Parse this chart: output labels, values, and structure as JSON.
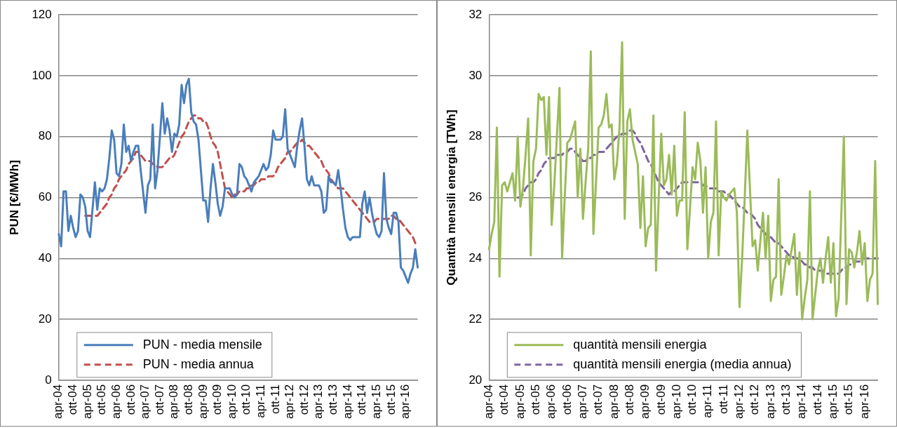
{
  "chart_data": [
    {
      "type": "line",
      "ylabel": "PUN [€/MWh]",
      "categories": [
        "apr-04",
        null,
        null,
        null,
        null,
        null,
        "ott-04",
        null,
        null,
        null,
        null,
        null,
        "apr-05",
        null,
        null,
        null,
        null,
        null,
        "ott-05",
        null,
        null,
        null,
        null,
        null,
        "apr-06",
        null,
        null,
        null,
        null,
        null,
        "ott-06",
        null,
        null,
        null,
        null,
        null,
        "apr-07",
        null,
        null,
        null,
        null,
        null,
        "ott-07",
        null,
        null,
        null,
        null,
        null,
        "apr-08",
        null,
        null,
        null,
        null,
        null,
        "ott-08",
        null,
        null,
        null,
        null,
        null,
        "apr-09",
        null,
        null,
        null,
        null,
        null,
        "ott-09",
        null,
        null,
        null,
        null,
        null,
        "apr-10",
        null,
        null,
        null,
        null,
        null,
        "ott-10",
        null,
        null,
        null,
        null,
        null,
        "apr-11",
        null,
        null,
        null,
        null,
        null,
        "ott-11",
        null,
        null,
        null,
        null,
        null,
        "apr-12",
        null,
        null,
        null,
        null,
        null,
        "ott-12",
        null,
        null,
        null,
        null,
        null,
        "apr-13",
        null,
        null,
        null,
        null,
        null,
        "ott-13",
        null,
        null,
        null,
        null,
        null,
        "apr-14",
        null,
        null,
        null,
        null,
        null,
        "ott-14",
        null,
        null,
        null,
        null,
        null,
        "apr-15",
        null,
        null,
        null,
        null,
        null,
        "ott-15",
        null,
        null,
        null,
        null,
        null,
        "apr-16",
        null,
        null,
        null,
        null,
        null
      ],
      "series": [
        {
          "name": "PUN - media mensile",
          "color": "#4a7ebb",
          "line_style": "solid",
          "values": [
            48,
            44,
            62,
            62,
            49,
            54,
            50,
            47,
            49,
            61,
            60,
            57,
            49,
            47,
            56,
            65,
            56,
            63,
            62,
            63,
            66,
            73,
            82,
            79,
            68,
            67,
            71,
            84,
            75,
            77,
            72,
            75,
            77,
            77,
            69,
            62,
            55,
            64,
            66,
            84,
            63,
            69,
            80,
            91,
            81,
            86,
            82,
            75,
            81,
            80,
            84,
            97,
            91,
            97,
            99,
            88,
            85,
            84,
            79,
            69,
            59,
            59,
            52,
            63,
            71,
            65,
            58,
            54,
            57,
            63,
            63,
            63,
            61,
            60,
            61,
            71,
            70,
            67,
            66,
            64,
            62,
            65,
            66,
            67,
            69,
            71,
            69,
            70,
            74,
            82,
            79,
            79,
            79,
            80,
            89,
            76,
            74,
            72,
            70,
            77,
            82,
            86,
            77,
            66,
            64,
            67,
            64,
            64,
            64,
            62,
            55,
            56,
            67,
            65,
            65,
            64,
            69,
            63,
            56,
            50,
            47,
            46,
            47,
            47,
            47,
            47,
            58,
            62,
            55,
            60,
            55,
            51,
            48,
            47,
            49,
            68,
            53,
            50,
            48,
            55,
            55,
            52,
            37,
            36,
            34,
            32,
            35,
            37,
            43,
            37
          ]
        },
        {
          "name": "PUN - media annua",
          "color": "#c0504d",
          "line_style": "dashed",
          "values": [
            null,
            null,
            null,
            null,
            null,
            null,
            null,
            null,
            null,
            null,
            null,
            54,
            54,
            54,
            54,
            54,
            54,
            55,
            56,
            57,
            58,
            60,
            61,
            63,
            64,
            66,
            67,
            68,
            69,
            71,
            72,
            73,
            75,
            75,
            74,
            73,
            72,
            72,
            72,
            71,
            71,
            70,
            70,
            70,
            71,
            72,
            73,
            73,
            74,
            76,
            78,
            80,
            81,
            83,
            85,
            86,
            87,
            87,
            86,
            86,
            85,
            85,
            83,
            80,
            78,
            77,
            75,
            71,
            67,
            63,
            62,
            61,
            60,
            61,
            61,
            62,
            62,
            62,
            63,
            63,
            64,
            64,
            65,
            65,
            66,
            66,
            66,
            67,
            67,
            67,
            68,
            70,
            71,
            72,
            73,
            75,
            75,
            76,
            77,
            78,
            78,
            79,
            78,
            77,
            77,
            76,
            75,
            74,
            73,
            72,
            70,
            69,
            68,
            66,
            65,
            64,
            63,
            63,
            63,
            62,
            61,
            60,
            59,
            58,
            57,
            56,
            55,
            54,
            53,
            52,
            52,
            52,
            53,
            53,
            53,
            53,
            53,
            53,
            54,
            54,
            53,
            53,
            52,
            51,
            50,
            49,
            48,
            47,
            45,
            44
          ]
        }
      ],
      "ylim": [
        0,
        120
      ],
      "yticks": [
        0,
        20,
        40,
        60,
        80,
        100,
        120
      ],
      "grid": "y",
      "legend": "bottom left"
    },
    {
      "type": "line",
      "ylabel": "Quantità mensili energia [TWh]",
      "categories": [
        "apr-04",
        null,
        null,
        null,
        null,
        null,
        "ott-04",
        null,
        null,
        null,
        null,
        null,
        "apr-05",
        null,
        null,
        null,
        null,
        null,
        "ott-05",
        null,
        null,
        null,
        null,
        null,
        "apr-06",
        null,
        null,
        null,
        null,
        null,
        "ott-06",
        null,
        null,
        null,
        null,
        null,
        "apr-07",
        null,
        null,
        null,
        null,
        null,
        "ott-07",
        null,
        null,
        null,
        null,
        null,
        "apr-08",
        null,
        null,
        null,
        null,
        null,
        "ott-08",
        null,
        null,
        null,
        null,
        null,
        "apr-09",
        null,
        null,
        null,
        null,
        null,
        "ott-09",
        null,
        null,
        null,
        null,
        null,
        "apr-10",
        null,
        null,
        null,
        null,
        null,
        "ott-10",
        null,
        null,
        null,
        null,
        null,
        "apr-11",
        null,
        null,
        null,
        null,
        null,
        "ott-11",
        null,
        null,
        null,
        null,
        null,
        "apr-12",
        null,
        null,
        null,
        null,
        null,
        "ott-12",
        null,
        null,
        null,
        null,
        null,
        "apr-13",
        null,
        null,
        null,
        null,
        null,
        "ott-13",
        null,
        null,
        null,
        null,
        null,
        "apr-14",
        null,
        null,
        null,
        null,
        null,
        "ott-14",
        null,
        null,
        null,
        null,
        null,
        "apr-15",
        null,
        null,
        null,
        null,
        null,
        "ott-15",
        null,
        null,
        null,
        null,
        null,
        "apr-16",
        null,
        null,
        null,
        null,
        null
      ],
      "series": [
        {
          "name": "quantità mensili energia",
          "color": "#9bbb59",
          "line_style": "solid",
          "values": [
            24.3,
            24.8,
            25.2,
            28.3,
            23.4,
            26.4,
            26.5,
            26.2,
            26.5,
            26.8,
            25.9,
            28,
            25.7,
            26.3,
            27.4,
            28.6,
            24.1,
            27.2,
            27.6,
            29.4,
            29.2,
            29.3,
            27.4,
            29.3,
            25.1,
            26.4,
            28,
            29.6,
            24,
            26,
            27.8,
            27.9,
            28.2,
            28.5,
            26,
            27.6,
            25.3,
            26.5,
            27.6,
            30.8,
            24.8,
            26.5,
            28.3,
            28.4,
            28.7,
            29.4,
            28.3,
            28.4,
            26.6,
            27.1,
            28.3,
            31.1,
            25.3,
            28.5,
            28.9,
            27.9,
            27.5,
            27.1,
            25,
            26.7,
            24.4,
            25,
            25.1,
            28.7,
            23.6,
            25.9,
            28.1,
            26.4,
            26.6,
            27.4,
            26.1,
            27.7,
            25.4,
            25.9,
            25.9,
            28.8,
            24.3,
            25.6,
            27,
            26.6,
            27.8,
            27.2,
            25.5,
            27,
            24,
            25.2,
            25.5,
            28.5,
            24.1,
            26.2,
            26,
            25.9,
            26.1,
            26.2,
            26.3,
            25.5,
            22.4,
            24,
            26,
            28.2,
            26.3,
            24.4,
            24.6,
            23.6,
            24.6,
            25.5,
            24,
            25.4,
            22.6,
            23.3,
            23.4,
            26.6,
            22.8,
            23.4,
            24.1,
            23.8,
            24.3,
            24.8,
            22.8,
            24.2,
            22,
            22.7,
            23.3,
            26.2,
            22,
            22.8,
            23.6,
            24,
            23.2,
            24,
            24.7,
            23.2,
            24.5,
            22.1,
            22.7,
            25.4,
            28,
            22.5,
            24.3,
            24.2,
            23.7,
            24.2,
            24.9,
            23.8,
            24.5,
            22.6,
            23.3,
            23.5,
            27.2,
            22.5
          ]
        },
        {
          "name": "quantità mensili energia (media annua)",
          "color": "#8064a2",
          "line_style": "dashed",
          "values": [
            null,
            null,
            null,
            null,
            null,
            null,
            null,
            null,
            null,
            null,
            null,
            26,
            26,
            26.1,
            26.3,
            26.4,
            26.5,
            26.5,
            26.6,
            26.8,
            26.9,
            27.1,
            27.2,
            27.3,
            27.3,
            27.3,
            27.4,
            27.4,
            27.4,
            27.5,
            27.5,
            27.6,
            27.6,
            27.5,
            27.4,
            27.3,
            27.2,
            27.2,
            27.3,
            27.3,
            27.4,
            27.4,
            27.5,
            27.5,
            27.5,
            27.6,
            27.7,
            27.8,
            27.9,
            28,
            28,
            28.1,
            28.1,
            28.1,
            28.2,
            28.2,
            28.1,
            27.9,
            27.8,
            27.6,
            27.4,
            27.2,
            27.1,
            26.9,
            26.7,
            26.5,
            26.4,
            26.3,
            26.2,
            26.1,
            26.2,
            26.2,
            26.3,
            26.4,
            26.5,
            26.5,
            26.5,
            26.5,
            26.5,
            26.5,
            26.5,
            26.5,
            26.4,
            26.4,
            26.3,
            26.3,
            26.3,
            26.3,
            26.2,
            26.2,
            26.2,
            26.1,
            26.1,
            26,
            25.9,
            25.8,
            25.7,
            25.7,
            25.6,
            25.5,
            25.5,
            25.4,
            25.3,
            25.1,
            25,
            24.9,
            24.8,
            24.7,
            24.7,
            24.6,
            24.5,
            24.5,
            24.4,
            24.3,
            24.2,
            24.1,
            24.1,
            24,
            24,
            24,
            23.9,
            23.8,
            23.8,
            23.7,
            23.7,
            23.6,
            23.6,
            23.6,
            23.6,
            23.5,
            23.5,
            23.5,
            23.5,
            23.5,
            23.5,
            23.6,
            23.7,
            23.7,
            23.8,
            23.8,
            23.9,
            23.9,
            23.9,
            24,
            24,
            24,
            24,
            24,
            24,
            24
          ]
        }
      ],
      "ylim": [
        20,
        32
      ],
      "yticks": [
        20,
        22,
        24,
        26,
        28,
        30,
        32
      ],
      "grid": "y",
      "legend": "bottom left"
    }
  ]
}
